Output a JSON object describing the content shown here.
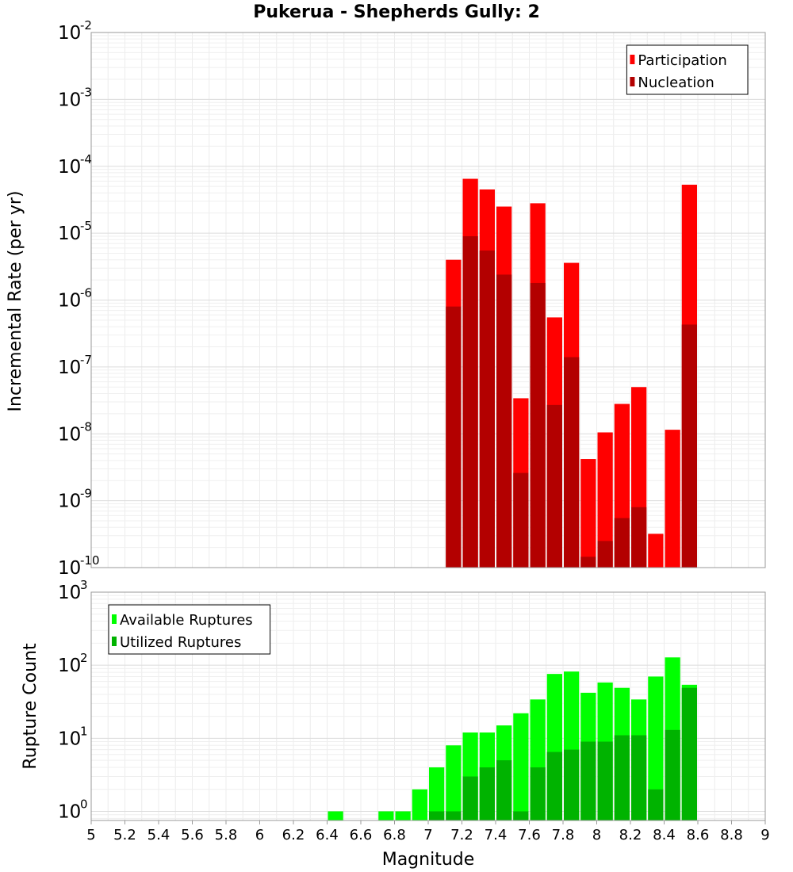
{
  "chart_data": [
    {
      "type": "bar",
      "title": "Pukerua - Shepherds Gully: 2",
      "ylabel": "Incremental Rate (per yr)",
      "yscale": "log",
      "ylim": [
        1e-10,
        0.01
      ],
      "xlim": [
        5,
        9
      ],
      "grid": true,
      "legend_position": "top-right",
      "series": [
        {
          "name": "Participation",
          "color": "#ff0000",
          "x": [
            7.1,
            7.2,
            7.3,
            7.4,
            7.5,
            7.6,
            7.7,
            7.8,
            7.9,
            8.0,
            8.1,
            8.2,
            8.3,
            8.4,
            8.5
          ],
          "values": [
            4e-06,
            6.5e-05,
            4.5e-05,
            2.5e-05,
            3.4e-08,
            2.8e-05,
            5.5e-07,
            3.6e-06,
            4.2e-09,
            1.05e-08,
            2.8e-08,
            5e-08,
            3.2e-10,
            1.15e-08,
            5.3e-05
          ]
        },
        {
          "name": "Nucleation",
          "color": "#b30000",
          "x": [
            7.1,
            7.2,
            7.3,
            7.4,
            7.5,
            7.6,
            7.7,
            7.8,
            7.9,
            8.0,
            8.1,
            8.2,
            8.3,
            8.4,
            8.5
          ],
          "values": [
            8e-07,
            9e-06,
            5.5e-06,
            2.4e-06,
            2.6e-09,
            1.8e-06,
            2.7e-08,
            1.4e-07,
            1.45e-10,
            2.5e-10,
            5.5e-10,
            8e-10,
            null,
            null,
            4.3e-07
          ]
        }
      ]
    },
    {
      "type": "bar",
      "title": "",
      "xlabel": "Magnitude",
      "ylabel": "Rupture Count",
      "yscale": "log",
      "ylim": [
        0.75,
        1000
      ],
      "xlim": [
        5,
        9
      ],
      "grid": true,
      "legend_position": "top-left",
      "series": [
        {
          "name": "Available Ruptures",
          "color": "#00ff00",
          "x": [
            6.4,
            6.7,
            6.8,
            6.9,
            7.0,
            7.1,
            7.2,
            7.3,
            7.4,
            7.5,
            7.6,
            7.7,
            7.8,
            7.9,
            8.0,
            8.1,
            8.2,
            8.3,
            8.4,
            8.5
          ],
          "values": [
            1,
            1,
            1,
            2,
            4,
            8,
            12,
            12,
            15,
            22,
            34,
            76,
            82,
            42,
            58,
            49,
            34,
            70,
            128,
            54
          ]
        },
        {
          "name": "Utilized Ruptures",
          "color": "#00b300",
          "x": [
            7.0,
            7.1,
            7.2,
            7.3,
            7.4,
            7.5,
            7.6,
            7.7,
            7.8,
            7.9,
            8.0,
            8.1,
            8.2,
            8.3,
            8.4,
            8.5
          ],
          "values": [
            1,
            1,
            3,
            4,
            5,
            1,
            4,
            6.5,
            7,
            9,
            9,
            11,
            11,
            2,
            13,
            49
          ]
        }
      ],
      "xticks": [
        "5",
        "5.2",
        "5.4",
        "5.6",
        "5.8",
        "6",
        "6.2",
        "6.4",
        "6.6",
        "6.8",
        "7",
        "7.2",
        "7.4",
        "7.6",
        "7.8",
        "8",
        "8.2",
        "8.4",
        "8.6",
        "8.8",
        "9"
      ]
    }
  ]
}
